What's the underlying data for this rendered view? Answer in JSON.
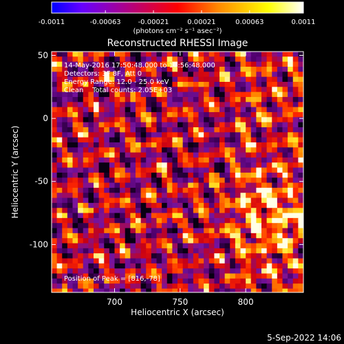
{
  "chart_data": {
    "type": "heatmap",
    "title": "Reconstructed RHESSI Image",
    "xlabel": "Heliocentric X (arcsec)",
    "ylabel": "Heliocentric Y (arcsec)",
    "xlim": [
      652,
      844
    ],
    "ylim": [
      -138,
      53
    ],
    "x_ticks": [
      700,
      750,
      800
    ],
    "y_ticks": [
      50,
      0,
      -50,
      -100
    ],
    "grid": false,
    "colorbar": {
      "ticks": [
        "-0.0011",
        "-0.00063",
        "-0.00021",
        "0.00021",
        "0.00063",
        "0.0011"
      ],
      "tick_values": [
        -0.0011,
        -0.00063,
        -0.00021,
        0.00021,
        0.00063,
        0.0011
      ],
      "range": [
        -0.0011,
        0.0011
      ],
      "unit_label": "(photons cm⁻² s⁻¹ asec⁻²)",
      "colors": [
        "#0000ff",
        "#6600ff",
        "#ff0000",
        "#ff8800",
        "#ffff00",
        "#ffffff"
      ]
    },
    "annotations": [
      "14-May-2016 17:50:48.000 to 17:56:48.000",
      "Detectors: 3F 8F, Att 0",
      "Energy Range: 12.0 - 25.0 keV",
      "Clean    Total counts: 2.05E+03"
    ],
    "peak_label": "Position of Peak = [816,-78]",
    "peak_position": [
      816,
      -78
    ],
    "date_stamp": "5-Sep-2022 14:06",
    "pixel_size_arcsec": 4
  }
}
